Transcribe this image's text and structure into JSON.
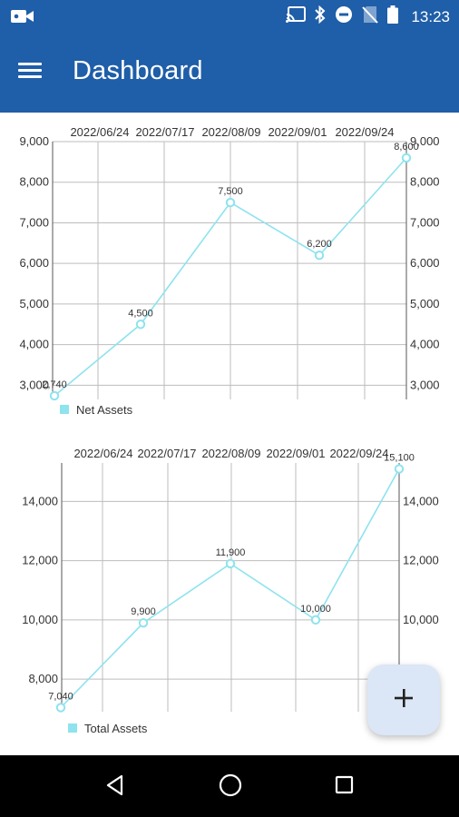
{
  "status_bar": {
    "time": "13:23",
    "icons": [
      "video-camera-icon",
      "cast-icon",
      "bluetooth-icon",
      "do-not-disturb-icon",
      "no-sim-icon",
      "battery-icon"
    ]
  },
  "app_bar": {
    "title": "Dashboard",
    "menu_icon": "hamburger-menu-icon"
  },
  "colors": {
    "app_bar": "#1f5ea8",
    "series": "#8ee3ee",
    "grid": "#bdbdbd",
    "fab_bg": "#dbe6f6",
    "nav_bar": "#000000"
  },
  "chart_data": [
    {
      "type": "line",
      "categories": [
        "2022/06/24",
        "2022/07/17",
        "2022/08/09",
        "2022/09/01",
        "2022/09/24"
      ],
      "series": [
        {
          "name": "Net Assets",
          "values": [
            2740,
            4500,
            7500,
            6200,
            8600
          ],
          "labels": [
            "2,740",
            "4,500",
            "7,500",
            "6,200",
            "8,600"
          ]
        }
      ],
      "y_ticks": [
        "3,000",
        "4,000",
        "5,000",
        "6,000",
        "7,000",
        "8,000",
        "9,000"
      ],
      "ylim": [
        2650,
        9000
      ],
      "dual_y_axis": true,
      "grid": true,
      "legend": "bottom-left",
      "xlabel": "",
      "ylabel": ""
    },
    {
      "type": "line",
      "categories": [
        "2022/06/24",
        "2022/07/17",
        "2022/08/09",
        "2022/09/01",
        "2022/09/24"
      ],
      "series": [
        {
          "name": "Total Assets",
          "values": [
            7040,
            9900,
            11900,
            10000,
            15100
          ],
          "labels": [
            "7,040",
            "9,900",
            "11,900",
            "10,000",
            "15,100"
          ]
        }
      ],
      "y_ticks": [
        "8,000",
        "10,000",
        "12,000",
        "14,000"
      ],
      "ylim": [
        6900,
        15300
      ],
      "dual_y_axis": true,
      "grid": true,
      "legend": "bottom-left",
      "xlabel": "",
      "ylabel": ""
    }
  ],
  "fab": {
    "icon": "plus-icon"
  },
  "nav_bar": {
    "icons": [
      "back-icon",
      "home-icon",
      "recents-icon"
    ]
  }
}
